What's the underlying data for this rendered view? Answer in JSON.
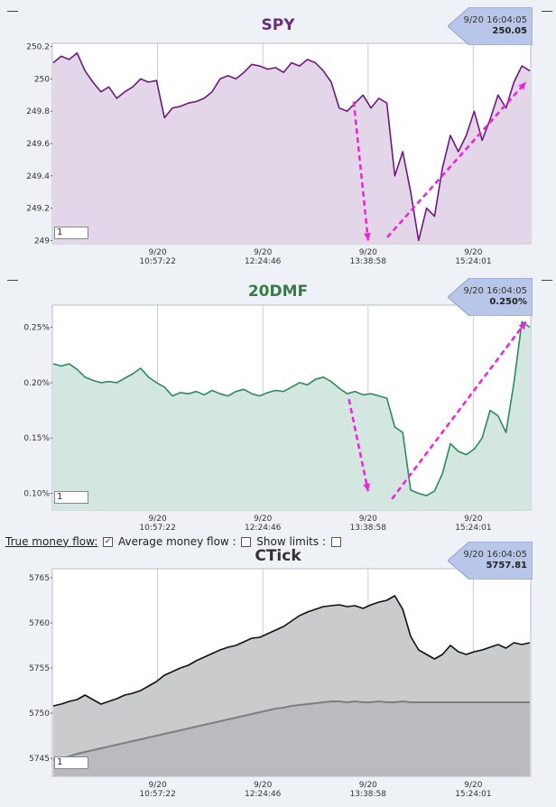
{
  "charts": [
    {
      "key": "spy",
      "title": "SPY",
      "title_color": "#6b2d7a",
      "line_color": "#6b1a7a",
      "fill_color": "#e2d6e8",
      "badge": {
        "time": "9/20 16:04:05",
        "value": "250.05"
      },
      "period_input": "1",
      "chart_data": {
        "type": "line",
        "title": "SPY",
        "yticks": [
          "250.2",
          "250",
          "249.8",
          "249.6",
          "249.4",
          "249.2",
          "249"
        ],
        "ylim": [
          248.98,
          250.22
        ],
        "xticks": [
          {
            "date": "9/20",
            "time": "10:57:22"
          },
          {
            "date": "9/20",
            "time": "12:24:46"
          },
          {
            "date": "9/20",
            "time": "13:38:58"
          },
          {
            "date": "9/20",
            "time": "15:24:01"
          }
        ],
        "grid": true,
        "series": [
          {
            "values": [
              250.1,
              250.14,
              250.12,
              250.16,
              250.05,
              249.98,
              249.92,
              249.95,
              249.88,
              249.92,
              249.95,
              250.0,
              249.98,
              249.99,
              249.76,
              249.82,
              249.83,
              249.85,
              249.86,
              249.88,
              249.92,
              250.0,
              250.02,
              250.0,
              250.04,
              250.09,
              250.08,
              250.06,
              250.07,
              250.04,
              250.1,
              250.08,
              250.12,
              250.1,
              250.05,
              249.98,
              249.82,
              249.8,
              249.85,
              249.9,
              249.82,
              249.88,
              249.85,
              249.4,
              249.55,
              249.3,
              249.0,
              249.2,
              249.15,
              249.45,
              249.65,
              249.55,
              249.65,
              249.8,
              249.62,
              249.75,
              249.9,
              249.82,
              249.98,
              250.08,
              250.05
            ]
          }
        ],
        "annotations": [
          {
            "type": "arrow",
            "from_x": 0.63,
            "from_y": 249.86,
            "to_x": 0.66,
            "to_y": 249.0
          },
          {
            "type": "arrow",
            "from_x": 0.7,
            "from_y": 249.02,
            "to_x": 0.99,
            "to_y": 249.98
          }
        ]
      }
    },
    {
      "key": "dmf",
      "title": "20DMF",
      "title_color": "#3a7a4a",
      "line_color": "#2e8a5a",
      "fill_color": "#d3e6df",
      "badge": {
        "time": "9/20 16:04:05",
        "value": "0.250%"
      },
      "period_input": "1",
      "chart_data": {
        "type": "line",
        "title": "20DMF",
        "yticks": [
          "0.25%",
          "0.20%",
          "0.15%",
          "0.10%"
        ],
        "ylim": [
          0.085,
          0.27
        ],
        "xticks": [
          {
            "date": "9/20",
            "time": "10:57:22"
          },
          {
            "date": "9/20",
            "time": "12:24:46"
          },
          {
            "date": "9/20",
            "time": "13:38:58"
          },
          {
            "date": "9/20",
            "time": "15:24:01"
          }
        ],
        "grid": true,
        "series": [
          {
            "values": [
              0.217,
              0.215,
              0.217,
              0.212,
              0.205,
              0.202,
              0.2,
              0.201,
              0.2,
              0.204,
              0.208,
              0.213,
              0.205,
              0.2,
              0.196,
              0.188,
              0.191,
              0.19,
              0.192,
              0.189,
              0.193,
              0.19,
              0.188,
              0.192,
              0.194,
              0.19,
              0.188,
              0.191,
              0.193,
              0.192,
              0.196,
              0.2,
              0.198,
              0.203,
              0.205,
              0.201,
              0.195,
              0.19,
              0.192,
              0.189,
              0.19,
              0.188,
              0.186,
              0.16,
              0.155,
              0.103,
              0.1,
              0.098,
              0.102,
              0.118,
              0.145,
              0.138,
              0.135,
              0.14,
              0.15,
              0.175,
              0.17,
              0.155,
              0.2,
              0.255,
              0.25
            ]
          }
        ],
        "annotations": [
          {
            "type": "arrow",
            "from_x": 0.62,
            "from_y": 0.185,
            "to_x": 0.66,
            "to_y": 0.102
          },
          {
            "type": "arrow",
            "from_x": 0.71,
            "from_y": 0.095,
            "to_x": 0.99,
            "to_y": 0.255
          }
        ]
      }
    },
    {
      "key": "ctick",
      "title": "CTick",
      "title_color": "#333333",
      "line_color": "#111111",
      "fill_color": "#c9cbcd",
      "badge": {
        "time": "9/20 16:04:05",
        "value": "5757.81"
      },
      "period_input": "1",
      "chart_data": {
        "type": "area",
        "title": "CTick",
        "yticks": [
          "5765",
          "5760",
          "5755",
          "5750",
          "5745"
        ],
        "ylim": [
          5743,
          5766
        ],
        "xticks": [
          {
            "date": "9/20",
            "time": "10:57:22"
          },
          {
            "date": "9/20",
            "time": "12:24:46"
          },
          {
            "date": "9/20",
            "time": "13:38:58"
          },
          {
            "date": "9/20",
            "time": "15:24:01"
          }
        ],
        "grid": true,
        "series": [
          {
            "values": [
              5750.8,
              5751.0,
              5751.3,
              5751.5,
              5752.0,
              5751.5,
              5751.0,
              5751.3,
              5751.6,
              5752.0,
              5752.2,
              5752.5,
              5753.0,
              5753.5,
              5754.2,
              5754.6,
              5755.0,
              5755.3,
              5755.8,
              5756.2,
              5756.6,
              5757.0,
              5757.3,
              5757.5,
              5757.9,
              5758.3,
              5758.4,
              5758.8,
              5759.2,
              5759.6,
              5760.2,
              5760.8,
              5761.2,
              5761.5,
              5761.8,
              5761.9,
              5762.0,
              5761.8,
              5761.9,
              5761.6,
              5762.0,
              5762.3,
              5762.5,
              5763.0,
              5761.5,
              5758.5,
              5757.0,
              5756.5,
              5756.0,
              5756.5,
              5757.5,
              5756.8,
              5756.5,
              5756.8,
              5757.0,
              5757.3,
              5757.6,
              5757.2,
              5757.8,
              5757.6,
              5757.8
            ]
          },
          {
            "values": [
              5744.8,
              5745.0,
              5745.2,
              5745.5,
              5745.7,
              5745.9,
              5746.1,
              5746.3,
              5746.5,
              5746.7,
              5746.9,
              5747.1,
              5747.3,
              5747.5,
              5747.7,
              5747.9,
              5748.1,
              5748.3,
              5748.5,
              5748.7,
              5748.9,
              5749.1,
              5749.3,
              5749.5,
              5749.7,
              5749.9,
              5750.1,
              5750.3,
              5750.5,
              5750.6,
              5750.8,
              5750.9,
              5751.0,
              5751.1,
              5751.2,
              5751.3,
              5751.3,
              5751.2,
              5751.3,
              5751.2,
              5751.2,
              5751.3,
              5751.2,
              5751.2,
              5751.3,
              5751.2,
              5751.2,
              5751.2,
              5751.2,
              5751.2,
              5751.2,
              5751.2,
              5751.2,
              5751.2,
              5751.2,
              5751.2,
              5751.2,
              5751.2,
              5751.2,
              5751.2,
              5751.2
            ]
          }
        ]
      }
    }
  ],
  "options": {
    "true_money_flow_label": "True money flow:",
    "true_money_flow_checked": true,
    "average_money_flow_label": "Average money flow :",
    "average_money_flow_checked": false,
    "show_limits_label": "Show limits :",
    "show_limits_checked": false
  },
  "arrow_color": "#ee22dd"
}
